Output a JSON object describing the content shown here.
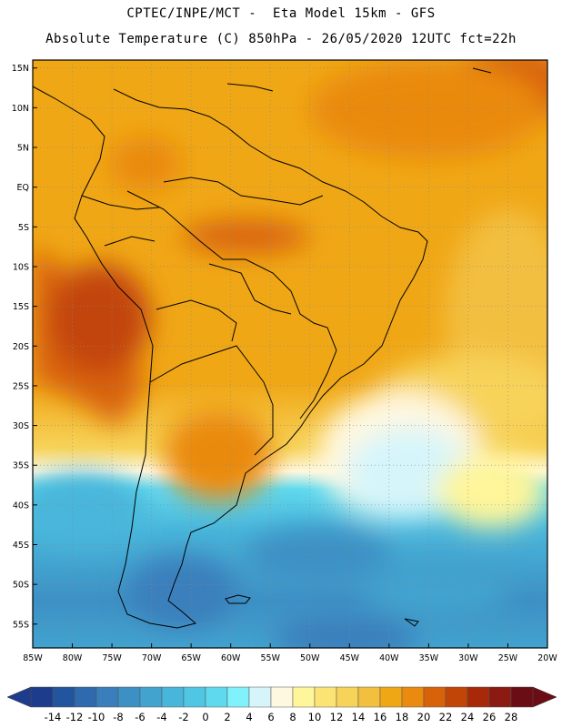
{
  "header": {
    "line1": "CPTEC/INPE/MCT -  Eta Model 15km - GFS",
    "line2": "Absolute Temperature (C) 850hPa - 26/05/2020 12UTC fct=22h"
  },
  "map": {
    "lat_labels": [
      "15N",
      "10N",
      "5N",
      "EQ",
      "5S",
      "10S",
      "15S",
      "20S",
      "25S",
      "30S",
      "35S",
      "40S",
      "45S",
      "50S",
      "55S"
    ],
    "lon_labels": [
      "85W",
      "80W",
      "75W",
      "70W",
      "65W",
      "60W",
      "55W",
      "50W",
      "45W",
      "40W",
      "35W",
      "30W",
      "25W",
      "20W"
    ],
    "lon_range": [
      -85,
      -20
    ],
    "lat_range": [
      -58,
      16
    ],
    "grid": true
  },
  "colorbar": {
    "labels": [
      "-14",
      "-12",
      "-10",
      "-8",
      "-6",
      "-4",
      "-2",
      "0",
      "2",
      "4",
      "6",
      "8",
      "10",
      "12",
      "14",
      "16",
      "18",
      "20",
      "22",
      "24",
      "26",
      "28"
    ],
    "colors": [
      "#1e3c8c",
      "#23559e",
      "#2f6aae",
      "#3a7fbc",
      "#3d90c4",
      "#42a3cf",
      "#48b5da",
      "#4fc6e3",
      "#5fd9ee",
      "#7ff2fb",
      "#d6f5fb",
      "#fff8e0",
      "#fff59a",
      "#fbe473",
      "#f7d35a",
      "#f3bf3f",
      "#f0a716",
      "#ea8a0e",
      "#d86209",
      "#c24508",
      "#a8290a",
      "#8a1a12",
      "#6b0d14"
    ],
    "under_color": "#1e3c8c",
    "over_color": "#6b0d14"
  }
}
